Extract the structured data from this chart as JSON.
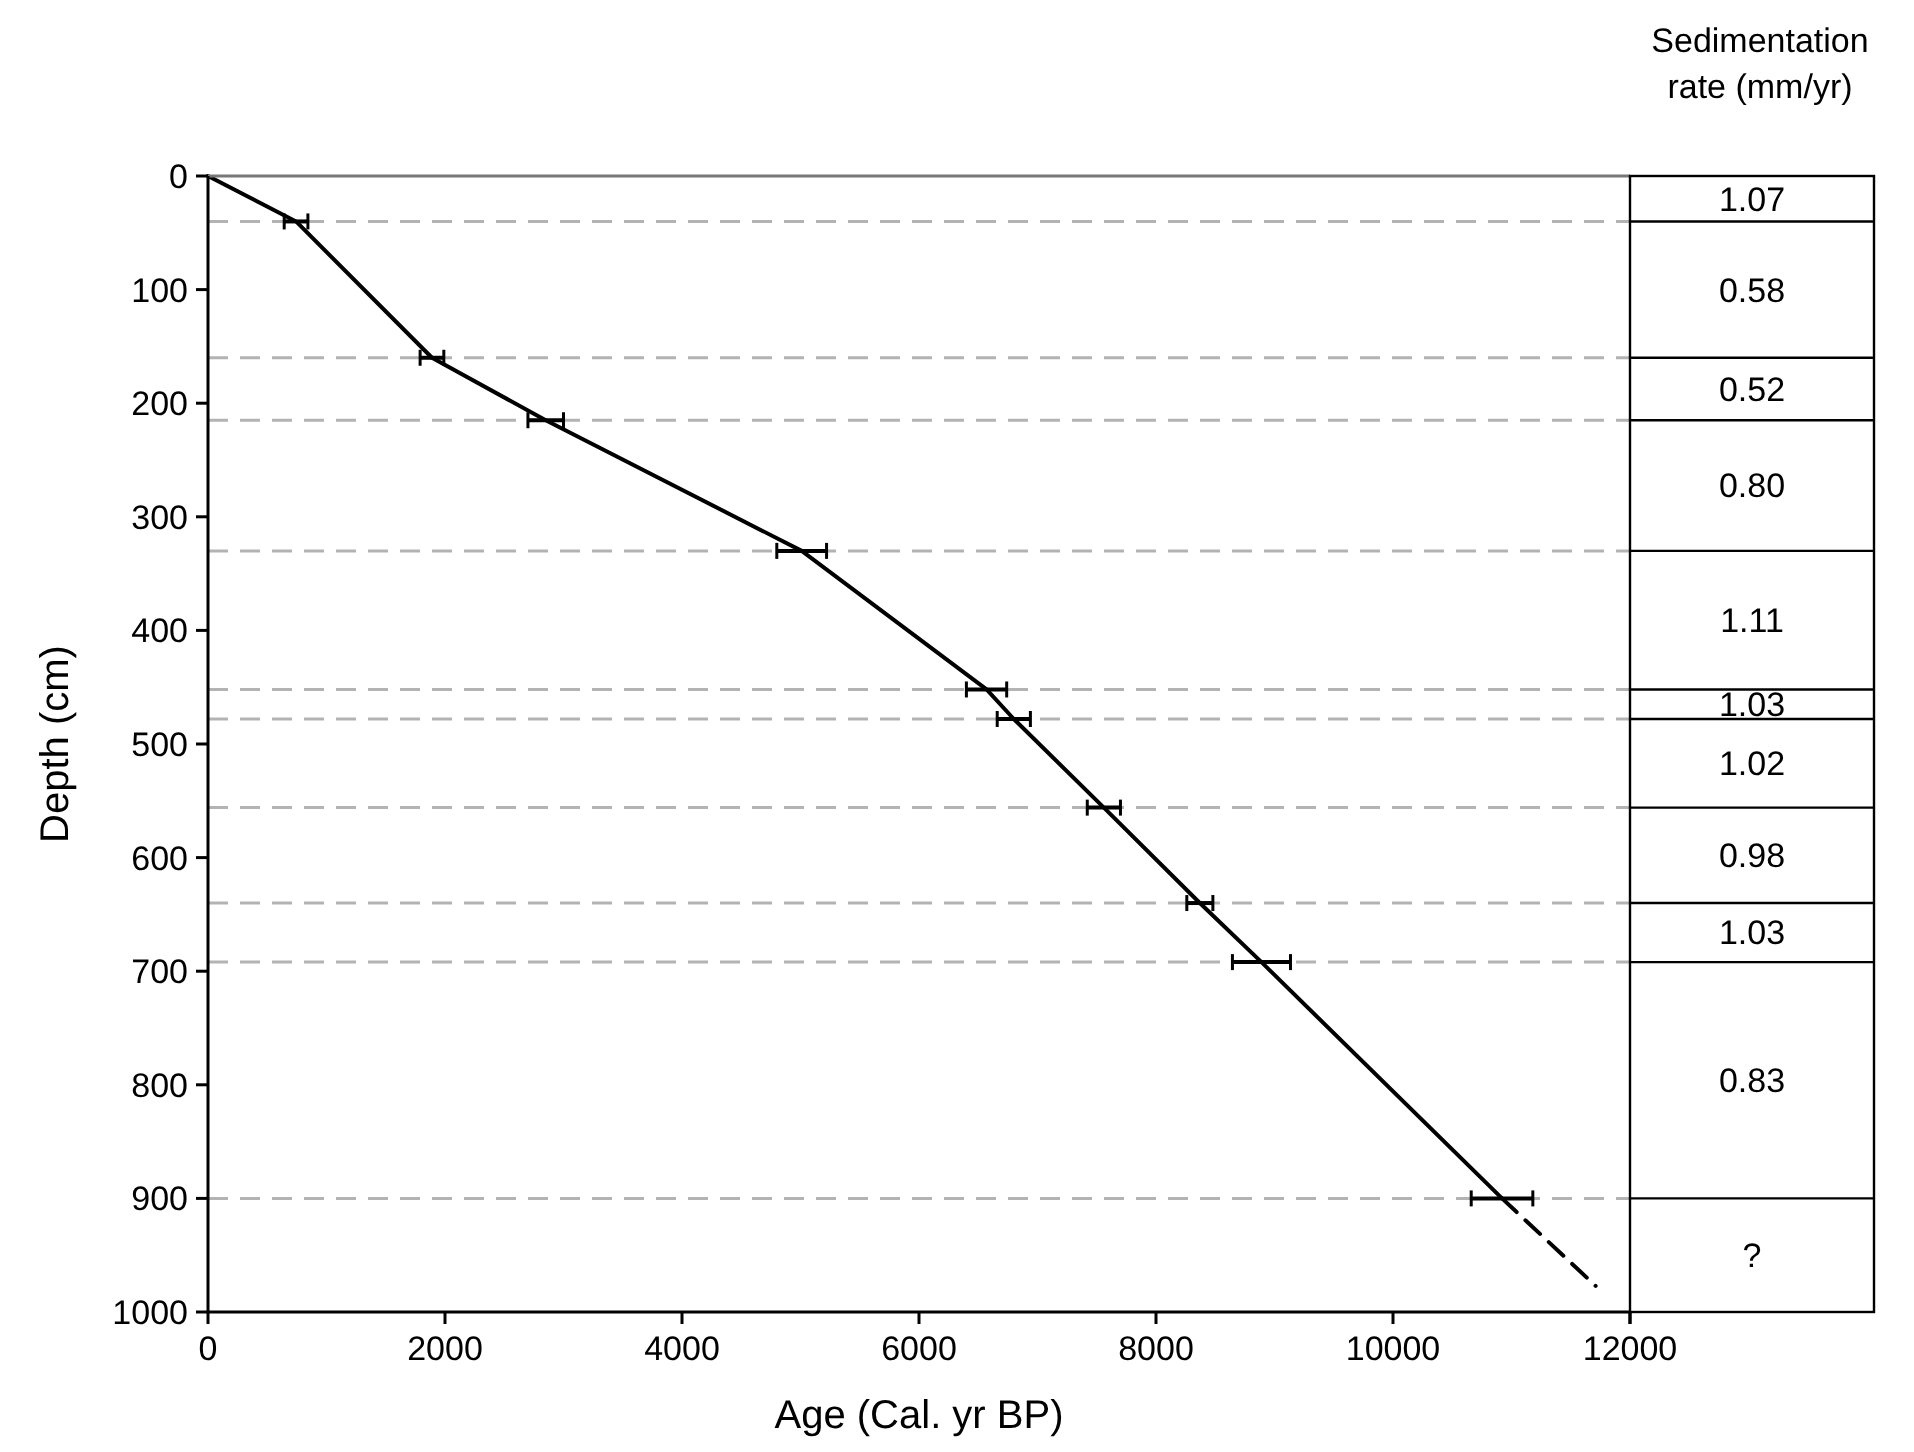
{
  "chart_data": {
    "type": "line",
    "xlabel": "Age (Cal. yr BP)",
    "ylabel": "Depth (cm)",
    "xlim": [
      0,
      12000
    ],
    "xticks": [
      0,
      2000,
      4000,
      6000,
      8000,
      10000,
      12000
    ],
    "ylim": [
      1000,
      0
    ],
    "yticks": [
      0,
      100,
      200,
      300,
      400,
      500,
      600,
      700,
      800,
      900,
      1000
    ],
    "grid": false,
    "marker": "none",
    "series": [
      {
        "color": "#000000",
        "line_style": "solid",
        "x": [
          0,
          743,
          1890,
          2850,
          5010,
          6570,
          6800,
          7560,
          8370,
          8890,
          10920
        ],
        "values": [
          0,
          40,
          160,
          215,
          330,
          452,
          478,
          556,
          640,
          692,
          900
        ],
        "xerrors": [
          null,
          100,
          100,
          150,
          210,
          170,
          140,
          140,
          110,
          245,
          260
        ]
      },
      {
        "color": "#000000",
        "line_style": "dashed",
        "x": [
          10920,
          11710
        ],
        "values": [
          900,
          977
        ]
      }
    ],
    "ref_lines": [
      {
        "axis": "y",
        "value": 40,
        "color": "#b3b3b3",
        "line_style": "dashed"
      },
      {
        "axis": "y",
        "value": 160,
        "color": "#b3b3b3",
        "line_style": "dashed"
      },
      {
        "axis": "y",
        "value": 215,
        "color": "#b3b3b3",
        "line_style": "dashed"
      },
      {
        "axis": "y",
        "value": 330,
        "color": "#b3b3b3",
        "line_style": "dashed"
      },
      {
        "axis": "y",
        "value": 452,
        "color": "#b3b3b3",
        "line_style": "dashed"
      },
      {
        "axis": "y",
        "value": 478,
        "color": "#b3b3b3",
        "line_style": "dashed"
      },
      {
        "axis": "y",
        "value": 556,
        "color": "#b3b3b3",
        "line_style": "dashed"
      },
      {
        "axis": "y",
        "value": 640,
        "color": "#b3b3b3",
        "line_style": "dashed"
      },
      {
        "axis": "y",
        "value": 692,
        "color": "#b3b3b3",
        "line_style": "dashed"
      },
      {
        "axis": "y",
        "value": 900,
        "color": "#b3b3b3",
        "line_style": "dashed"
      }
    ],
    "annotations": [
      "Sedimentation rate (mm/yr)",
      "1.07",
      "0.58",
      "0.52",
      "0.80",
      "1.11",
      "1.03",
      "1.02",
      "0.98",
      "1.03",
      "0.83",
      "?"
    ]
  }
}
